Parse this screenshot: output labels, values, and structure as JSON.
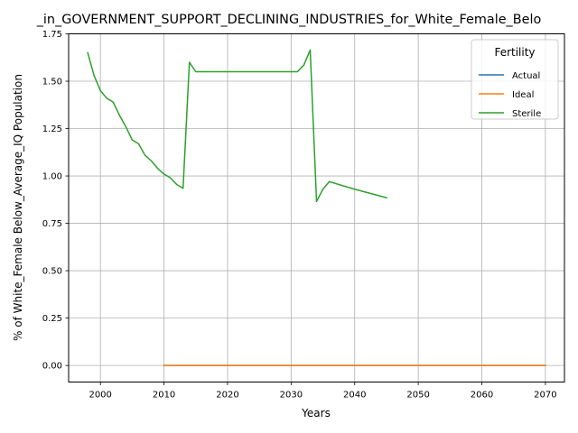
{
  "chart_data": {
    "type": "line",
    "title": "_in_GOVERNMENT_SUPPORT_DECLINING_INDUSTRIES_for_White_Female_Belo",
    "xlabel": "Years",
    "ylabel": "% of White_Female Below_Average_IQ Population",
    "xlim": [
      1995,
      2073
    ],
    "ylim": [
      -0.0875,
      1.75
    ],
    "xticks": [
      2000,
      2010,
      2020,
      2030,
      2040,
      2050,
      2060,
      2070
    ],
    "yticks": [
      0.0,
      0.25,
      0.5,
      0.75,
      1.0,
      1.25,
      1.5,
      1.75
    ],
    "xtick_labels": [
      "2000",
      "2010",
      "2020",
      "2030",
      "2040",
      "2050",
      "2060",
      "2070"
    ],
    "ytick_labels": [
      "0.00",
      "0.25",
      "0.50",
      "0.75",
      "1.00",
      "1.25",
      "1.50",
      "1.75"
    ],
    "grid": true,
    "legend": {
      "title": "Fertility",
      "placement": "top-right"
    },
    "series": [
      {
        "name": "Actual",
        "color": "#1f77b4",
        "x": [
          2010,
          2070
        ],
        "y": [
          0.0,
          0.0
        ]
      },
      {
        "name": "Ideal",
        "color": "#ff7f0e",
        "x": [
          2010,
          2015,
          2020,
          2025,
          2030,
          2035,
          2040,
          2045,
          2050,
          2055,
          2060,
          2065,
          2070
        ],
        "y": [
          0.0,
          0.0,
          0.0,
          0.0,
          0.0,
          0.0,
          0.0,
          0.0,
          0.0,
          0.0,
          0.0,
          0.0,
          0.0
        ]
      },
      {
        "name": "Sterile",
        "color": "#2ca02c",
        "x": [
          1998,
          1999,
          2000,
          2001,
          2002,
          2003,
          2004,
          2005,
          2006,
          2007,
          2008,
          2009,
          2010,
          2011,
          2012,
          2013,
          2014,
          2015,
          2016,
          2020,
          2025,
          2030,
          2031,
          2032,
          2033,
          2034,
          2035,
          2036,
          2037,
          2040,
          2045
        ],
        "y": [
          1.65,
          1.53,
          1.45,
          1.41,
          1.39,
          1.32,
          1.26,
          1.19,
          1.17,
          1.11,
          1.08,
          1.04,
          1.01,
          0.99,
          0.955,
          0.935,
          1.6,
          1.55,
          1.55,
          1.55,
          1.55,
          1.55,
          1.55,
          1.585,
          1.665,
          0.865,
          0.93,
          0.97,
          0.96,
          0.93,
          0.885
        ]
      }
    ]
  }
}
